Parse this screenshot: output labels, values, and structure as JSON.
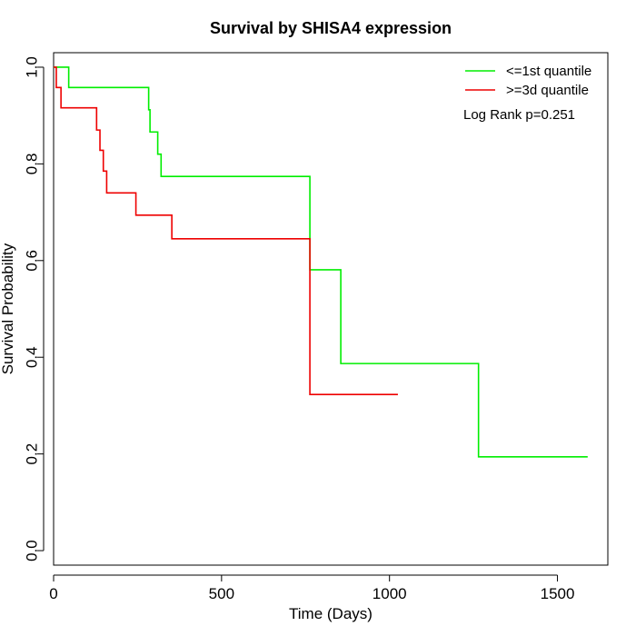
{
  "chart_data": {
    "type": "line",
    "title": "Survival by SHISA4 expression",
    "xlabel": "Time (Days)",
    "ylabel": "Survival Probability",
    "xlim": [
      0,
      1650
    ],
    "ylim": [
      -0.03,
      1.03
    ],
    "x_ticks": [
      0,
      500,
      1000,
      1500
    ],
    "x_tick_labels": [
      "0",
      "500",
      "1000",
      "1500"
    ],
    "y_ticks": [
      0.0,
      0.2,
      0.4,
      0.6,
      0.8,
      1.0
    ],
    "y_tick_labels": [
      "0.0",
      "0.2",
      "0.4",
      "0.6",
      "0.8",
      "1.0"
    ],
    "grid": false,
    "legend_position": "top-right",
    "annotation": "Log Rank p=0.251",
    "series": [
      {
        "name": "<=1st quantile",
        "color": "#00ee00",
        "step": true,
        "x": [
          0,
          45,
          280,
          283,
          287,
          303,
          310,
          320,
          763,
          855,
          1265,
          1590
        ],
        "y": [
          1.0,
          0.958,
          0.958,
          0.912,
          0.866,
          0.866,
          0.82,
          0.774,
          0.581,
          0.387,
          0.194,
          0.194
        ]
      },
      {
        "name": ">=3d quantile",
        "color": "#ee0000",
        "step": true,
        "x": [
          0,
          8,
          22,
          112,
          128,
          138,
          148,
          158,
          245,
          352,
          763,
          1025
        ],
        "y": [
          1.0,
          0.958,
          0.916,
          0.916,
          0.87,
          0.828,
          0.785,
          0.74,
          0.694,
          0.645,
          0.323,
          0.323
        ]
      }
    ]
  }
}
